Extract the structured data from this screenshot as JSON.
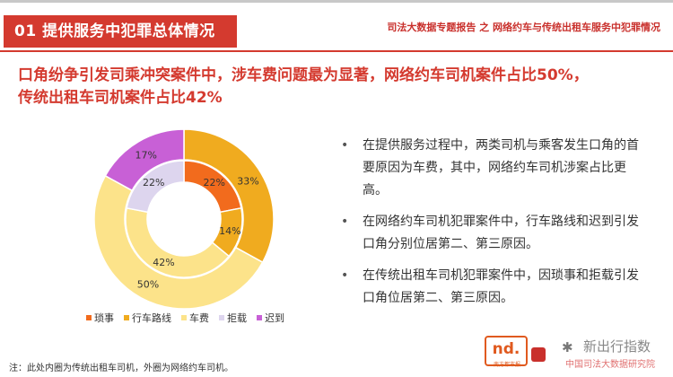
{
  "header": {
    "section_tag": "01 提供服务中犯罪总体情况",
    "report_title": "司法大数据专题报告 之 网络约车与传统出租车服务中犯罪情况"
  },
  "headline": {
    "line1": "口角纷争引发司乘冲突案件中，涉车费问题最为显著，网络约车司机案件占比50%，",
    "line2": "传统出租车司机案件占比42%"
  },
  "chart_data": {
    "type": "pie",
    "title": "",
    "categories": [
      "琐事",
      "行车路线",
      "车费",
      "拒载",
      "迟到"
    ],
    "colors": [
      "#f26b1d",
      "#f0ab1f",
      "#fce38a",
      "#ddd5ee",
      "#c860d6"
    ],
    "series": [
      {
        "ring": "inner",
        "values": [
          22,
          14,
          42,
          22,
          0
        ],
        "labels": [
          "22%",
          "14%",
          "42%",
          "22%",
          ""
        ]
      },
      {
        "ring": "outer",
        "values": [
          0,
          33,
          50,
          0,
          17
        ],
        "labels": [
          "",
          "33%",
          "50%",
          "",
          "17%"
        ]
      }
    ],
    "legend_position": "bottom"
  },
  "bullets": [
    "在提供服务过程中，两类司机与乘客发生口角的首要原因为车费，其中，网络约车司机涉案占比更高。",
    "在网络约车司机犯罪案件中，行车路线和迟到引发口角分别位居第二、第三原因。",
    "在传统出租车司机犯罪案件中，因琐事和拒载引发口角位居第二、第三原因。"
  ],
  "bullet_symbol": "•",
  "footnote": "注：此处内圈为传统出租车司机，外圈为网络约车司机。",
  "logo": {
    "mark": "nd.",
    "sub": "南方都市报"
  },
  "watermark": {
    "text": "新出行指数",
    "sub": "中国司法大数据研究院"
  }
}
